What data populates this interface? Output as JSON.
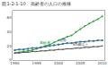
{
  "chart_data": {
    "type": "line",
    "title": "図1-2-1-10　高齢者の人口の推移",
    "x": [
      1990,
      1991,
      1992,
      1993,
      1994,
      1995,
      1996,
      1997,
      1998,
      1999,
      2000,
      2001,
      2002,
      2003,
      2004,
      2005,
      2006,
      2007,
      2008,
      2009,
      2010
    ],
    "series": [
      {
        "name": "高齢者",
        "color": "#2e9e3a",
        "marker": "circle",
        "values": [
          10,
          11,
          12,
          13,
          14,
          16,
          18,
          20,
          22,
          25,
          28,
          30,
          33,
          35,
          40,
          44,
          48,
          52,
          55,
          58,
          62
        ]
      },
      {
        "name": "総数",
        "color": "#3a6f8f",
        "marker": "square",
        "values": [
          14,
          15,
          15,
          16,
          17,
          17,
          18,
          19,
          20,
          21,
          22,
          23,
          24,
          24,
          25,
          26,
          26,
          27,
          27,
          28,
          28
        ]
      },
      {
        "name": "65歳以上",
        "color": "#555555",
        "marker": "triangle-up",
        "values": [
          10,
          10,
          11,
          11,
          12,
          12,
          13,
          13,
          14,
          14,
          15,
          15,
          16,
          16,
          17,
          17,
          18,
          18,
          19,
          19,
          20
        ]
      }
    ],
    "xlim": [
      1989.5,
      2010.5
    ],
    "xticks": [
      1990,
      1995,
      2000,
      2005,
      2010
    ],
    "ylim": [
      0,
      70
    ],
    "yticks": [
      0,
      20,
      40,
      60
    ],
    "grid": false
  }
}
